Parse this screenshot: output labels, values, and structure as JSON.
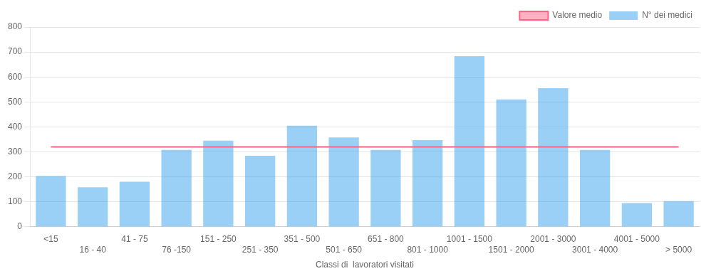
{
  "chart_data": {
    "type": "bar",
    "categories": [
      "<15",
      "16 - 40",
      "41 - 75",
      "76 -150",
      "151 - 250",
      "251 - 350",
      "351 - 500",
      "501 - 650",
      "651 - 800",
      "801 - 1000",
      "1001 - 1500",
      "1501 - 2000",
      "2001 - 3000",
      "3001 - 4000",
      "4001 - 5000",
      "> 5000"
    ],
    "series": [
      {
        "name": "N° dei medici",
        "values": [
          203,
          158,
          180,
          308,
          345,
          284,
          405,
          358,
          308,
          347,
          683,
          510,
          555,
          308,
          95,
          103
        ]
      }
    ],
    "mean_line": {
      "name": "Valore medio",
      "value": 320
    },
    "xlabel": "Classi di  lavoratori visitati",
    "ylim": [
      0,
      800
    ],
    "yticks": [
      0,
      100,
      200,
      300,
      400,
      500,
      600,
      700,
      800
    ],
    "grid": true,
    "legend": "upper right"
  }
}
